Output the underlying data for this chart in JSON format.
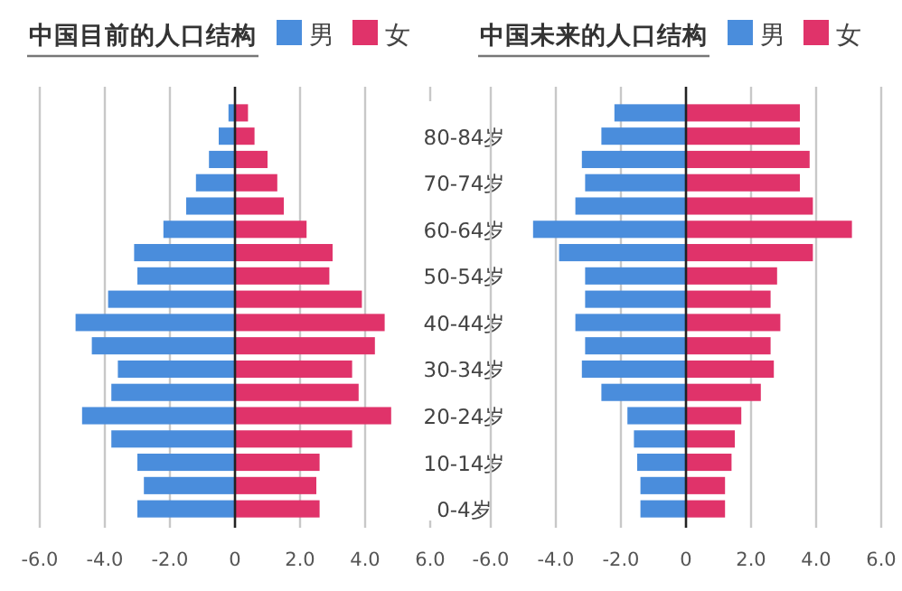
{
  "chart_data": [
    {
      "type": "bar",
      "orientation": "horizontal",
      "stacked": true,
      "title": "中国目前的人口结构",
      "categories": [
        null,
        "80-84岁",
        null,
        "70-74岁",
        null,
        "60-64岁",
        null,
        "50-54岁",
        null,
        "40-44岁",
        null,
        "30-34岁",
        null,
        "20-24岁",
        null,
        "10-14岁",
        null,
        "0-4岁"
      ],
      "series": [
        {
          "name": "男",
          "color": "#4a8ddc",
          "values": [
            -0.2,
            -0.5,
            -0.8,
            -1.2,
            -1.5,
            -2.2,
            -3.1,
            -3.0,
            -3.9,
            -4.9,
            -4.4,
            -3.6,
            -3.8,
            -4.7,
            -3.8,
            -3.0,
            -2.8,
            -3.0
          ]
        },
        {
          "name": "女",
          "color": "#e0336a",
          "values": [
            0.4,
            0.6,
            1.0,
            1.3,
            1.5,
            2.2,
            3.0,
            2.9,
            3.9,
            4.6,
            4.3,
            3.6,
            3.8,
            4.8,
            3.6,
            2.6,
            2.5,
            2.6
          ]
        }
      ],
      "xlim": [
        -6,
        6
      ],
      "xticks": [
        {
          "value": -6,
          "label": "-6.0"
        },
        {
          "value": -4,
          "label": "-4.0"
        },
        {
          "value": -2,
          "label": "-2.0"
        },
        0,
        {
          "value": 2,
          "label": "2.0"
        },
        {
          "value": 4,
          "label": "4.0"
        },
        {
          "value": 6,
          "label": "6.0"
        }
      ],
      "grid": "x",
      "legend": "top right"
    },
    {
      "type": "bar",
      "orientation": "horizontal",
      "stacked": true,
      "title": "中国未来的人口结构",
      "categories": [
        null,
        null,
        null,
        null,
        null,
        null,
        null,
        null,
        null,
        null,
        null,
        null,
        null,
        null,
        null,
        null,
        null,
        null
      ],
      "series": [
        {
          "name": "男",
          "color": "#4a8ddc",
          "values": [
            -2.2,
            -2.6,
            -3.2,
            -3.1,
            -3.4,
            -4.7,
            -3.9,
            -3.1,
            -3.1,
            -3.4,
            -3.1,
            -3.2,
            -2.6,
            -1.8,
            -1.6,
            -1.5,
            -1.4,
            -1.4
          ]
        },
        {
          "name": "女",
          "color": "#e0336a",
          "values": [
            3.5,
            3.5,
            3.8,
            3.5,
            3.9,
            5.1,
            3.9,
            2.8,
            2.6,
            2.9,
            2.6,
            2.7,
            2.3,
            1.7,
            1.5,
            1.4,
            1.2,
            1.2
          ]
        }
      ],
      "xlim": [
        -6,
        6
      ],
      "xticks": [
        {
          "value": -6,
          "label": "-6.0"
        },
        {
          "value": -4,
          "label": "-4.0"
        },
        {
          "value": -2,
          "label": "-2.0"
        },
        0,
        {
          "value": 2,
          "label": "2.0"
        },
        {
          "value": 4,
          "label": "4.0"
        },
        {
          "value": 6,
          "label": "6.0"
        }
      ],
      "grid": "x",
      "legend": "top right",
      "tick_labels": "x"
    }
  ]
}
